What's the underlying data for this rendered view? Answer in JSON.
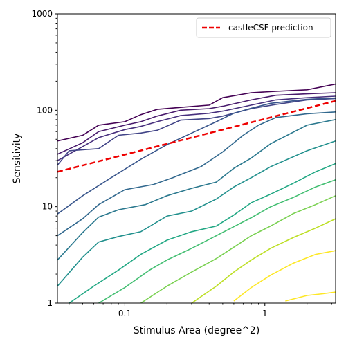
{
  "chart_data": {
    "type": "line",
    "xlabel": "Stimulus Area (degree^2)",
    "ylabel": "Sensitivity",
    "xscale": "log",
    "yscale": "log",
    "xlim": [
      0.033,
      3.2
    ],
    "ylim": [
      1,
      1000
    ],
    "x_ticks": [
      {
        "value": 0.1,
        "label": "0.1"
      },
      {
        "value": 1,
        "label": "1"
      }
    ],
    "y_ticks": [
      {
        "value": 1,
        "label": "1"
      },
      {
        "value": 10,
        "label": "10"
      },
      {
        "value": 100,
        "label": "100"
      },
      {
        "value": 1000,
        "label": "1000"
      }
    ],
    "grid": false,
    "legend": {
      "position": "top-right",
      "entries": [
        "castleCSF prediction"
      ]
    },
    "series": [
      {
        "color": "#440154",
        "x": [
          0.033,
          0.05,
          0.065,
          0.1,
          0.13,
          0.17,
          0.25,
          0.4,
          0.5,
          0.8,
          1.2,
          2,
          3.2
        ],
        "y": [
          48,
          55,
          70,
          76,
          90,
          102,
          107,
          113,
          135,
          152,
          157,
          163,
          187
        ]
      },
      {
        "color": "#481a6c",
        "x": [
          0.033,
          0.05,
          0.065,
          0.1,
          0.13,
          0.17,
          0.25,
          0.4,
          0.5,
          0.8,
          1.2,
          2,
          3.2
        ],
        "y": [
          35,
          46,
          60,
          70,
          76,
          87,
          100,
          104,
          110,
          128,
          143,
          148,
          152
        ]
      },
      {
        "color": "#472f7d",
        "x": [
          0.033,
          0.05,
          0.065,
          0.1,
          0.13,
          0.17,
          0.25,
          0.4,
          0.5,
          0.8,
          1.2,
          2,
          3.2
        ],
        "y": [
          30,
          42,
          52,
          63,
          68,
          76,
          88,
          93,
          98,
          113,
          128,
          135,
          140
        ]
      },
      {
        "color": "#414487",
        "x": [
          0.033,
          0.04,
          0.065,
          0.09,
          0.13,
          0.17,
          0.25,
          0.4,
          0.5,
          0.8,
          1.2,
          2,
          3.2
        ],
        "y": [
          27,
          38,
          40,
          55,
          58,
          62,
          79,
          82,
          87,
          104,
          115,
          128,
          132
        ]
      },
      {
        "color": "#39568c",
        "x": [
          0.033,
          0.05,
          0.08,
          0.13,
          0.2,
          0.3,
          0.45,
          0.6,
          0.8,
          1.1,
          1.5,
          2,
          3.2
        ],
        "y": [
          8.4,
          13,
          20,
          31,
          44,
          58,
          76,
          93,
          105,
          118,
          124,
          130,
          134
        ]
      },
      {
        "color": "#31688e",
        "x": [
          0.033,
          0.05,
          0.065,
          0.1,
          0.16,
          0.22,
          0.35,
          0.5,
          0.7,
          0.9,
          1.2,
          2,
          3.2
        ],
        "y": [
          5,
          7.5,
          10.5,
          15,
          17,
          20,
          26,
          37,
          55,
          70,
          84,
          92,
          96
        ]
      },
      {
        "color": "#2a788e",
        "x": [
          0.033,
          0.05,
          0.065,
          0.09,
          0.14,
          0.2,
          0.3,
          0.45,
          0.6,
          0.8,
          1.1,
          2,
          3.2
        ],
        "y": [
          2.8,
          5.4,
          7.8,
          9.3,
          10.5,
          13,
          15.5,
          18,
          25,
          32,
          45,
          70,
          80
        ]
      },
      {
        "color": "#21908d",
        "x": [
          0.033,
          0.05,
          0.065,
          0.09,
          0.13,
          0.2,
          0.3,
          0.45,
          0.6,
          0.8,
          1.1,
          2,
          3.2
        ],
        "y": [
          1.5,
          3,
          4.3,
          4.9,
          5.5,
          8,
          9,
          12,
          16,
          20,
          26,
          38,
          48
        ]
      },
      {
        "color": "#22a884",
        "x": [
          0.04,
          0.06,
          0.09,
          0.13,
          0.2,
          0.3,
          0.45,
          0.6,
          0.8,
          1.1,
          1.6,
          2.3,
          3.2
        ],
        "y": [
          1.0,
          1.5,
          2.2,
          3.2,
          4.5,
          5.5,
          6.3,
          8.2,
          11,
          13.5,
          17.5,
          23,
          28
        ]
      },
      {
        "color": "#42be71",
        "x": [
          0.065,
          0.1,
          0.15,
          0.2,
          0.3,
          0.45,
          0.6,
          0.8,
          1.1,
          1.6,
          2.3,
          3.2
        ],
        "y": [
          1.0,
          1.45,
          2.2,
          2.8,
          3.7,
          5,
          6.2,
          7.7,
          10,
          12.5,
          16,
          19
        ]
      },
      {
        "color": "#7ad151",
        "x": [
          0.13,
          0.2,
          0.3,
          0.45,
          0.6,
          0.8,
          1.1,
          1.6,
          2.3,
          3.2
        ],
        "y": [
          1.0,
          1.5,
          2.1,
          2.9,
          3.8,
          5,
          6.3,
          8.5,
          10.5,
          13
        ]
      },
      {
        "color": "#bddf26",
        "x": [
          0.3,
          0.45,
          0.6,
          0.8,
          1.1,
          1.6,
          2.3,
          3.2
        ],
        "y": [
          1.0,
          1.5,
          2.1,
          2.8,
          3.7,
          4.8,
          6,
          7.5
        ]
      },
      {
        "color": "#fde725",
        "x": [
          0.6,
          0.8,
          1.1,
          1.6,
          2.3,
          3.2
        ],
        "y": [
          1.05,
          1.45,
          1.95,
          2.6,
          3.2,
          3.5
        ]
      },
      {
        "color": "#fde725",
        "x": [
          1.4,
          2,
          2.6,
          3.2
        ],
        "y": [
          1.05,
          1.2,
          1.25,
          1.3
        ]
      },
      {
        "name": "castleCSF prediction",
        "color": "#ee0000",
        "dashed": true,
        "x": [
          0.033,
          3.2
        ],
        "y": [
          23,
          125
        ]
      }
    ]
  }
}
